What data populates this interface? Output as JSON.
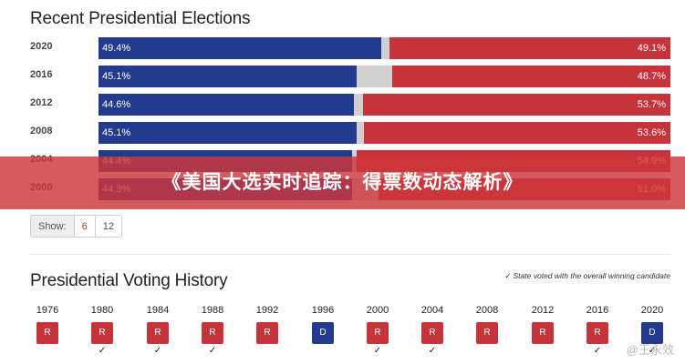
{
  "recent": {
    "title": "Recent Presidential Elections",
    "rows": [
      {
        "year": "2020",
        "dem_label": "49.4%",
        "rep_label": "49.1%",
        "dem": 49.4,
        "rep": 49.1
      },
      {
        "year": "2016",
        "dem_label": "45.1%",
        "rep_label": "48.7%",
        "dem": 45.1,
        "rep": 48.7
      },
      {
        "year": "2012",
        "dem_label": "44.6%",
        "rep_label": "53.7%",
        "dem": 44.6,
        "rep": 53.7
      },
      {
        "year": "2008",
        "dem_label": "45.1%",
        "rep_label": "53.6%",
        "dem": 45.1,
        "rep": 53.6
      },
      {
        "year": "2004",
        "dem_label": "44.4%",
        "rep_label": "54.9%",
        "dem": 44.4,
        "rep": 54.9
      },
      {
        "year": "2000",
        "dem_label": "44.3%",
        "rep_label": "51.0%",
        "dem": 44.3,
        "rep": 51.0
      }
    ]
  },
  "banner": {
    "text": "《美国大选实时追踪：得票数动态解析》"
  },
  "show": {
    "label": "Show:",
    "options": [
      "6",
      "12"
    ],
    "selected": "6"
  },
  "history": {
    "title": "Presidential Voting History",
    "note": "State voted with the overall winning candidate",
    "years": [
      {
        "year": "1976",
        "party": "R",
        "winner": false
      },
      {
        "year": "1980",
        "party": "R",
        "winner": true
      },
      {
        "year": "1984",
        "party": "R",
        "winner": true
      },
      {
        "year": "1988",
        "party": "R",
        "winner": true
      },
      {
        "year": "1992",
        "party": "R",
        "winner": false
      },
      {
        "year": "1996",
        "party": "D",
        "winner": false
      },
      {
        "year": "2000",
        "party": "R",
        "winner": true
      },
      {
        "year": "2004",
        "party": "R",
        "winner": true
      },
      {
        "year": "2008",
        "party": "R",
        "winner": false
      },
      {
        "year": "2012",
        "party": "R",
        "winner": false
      },
      {
        "year": "2016",
        "party": "R",
        "winner": true
      },
      {
        "year": "2020",
        "party": "D",
        "winner": true
      }
    ]
  },
  "watermark": "@王永效",
  "colors": {
    "dem": "#223b8f",
    "rep": "#c7333a",
    "other": "#d0d0d0",
    "banner": "#cd373a"
  },
  "icons": {
    "check": "check-icon"
  }
}
